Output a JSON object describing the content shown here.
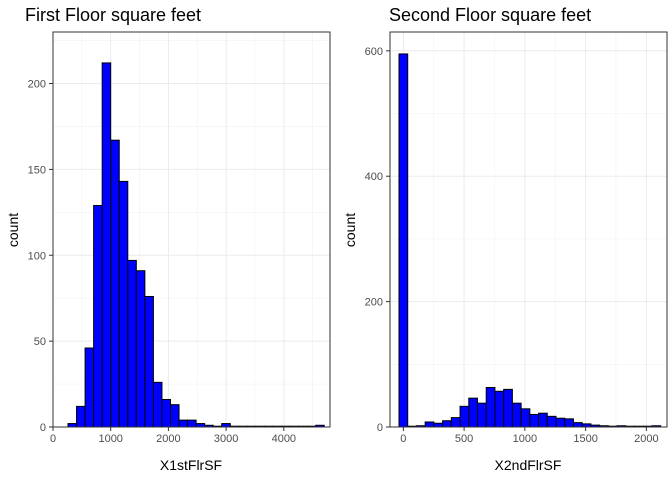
{
  "chart_data": [
    {
      "type": "bar",
      "title": "First Floor square feet",
      "xlabel": "X1stFlrSF",
      "ylabel": "count",
      "bar_color": "#0000ff",
      "outline_color": "#000000",
      "xlim": [
        0,
        4800
      ],
      "ylim": [
        0,
        230
      ],
      "x_ticks": [
        0,
        1000,
        2000,
        3000,
        4000
      ],
      "y_ticks": [
        0,
        50,
        100,
        150,
        200
      ],
      "grid": true,
      "bin_width": 148,
      "bin_start": 260,
      "values": [
        2,
        12,
        46,
        129,
        212,
        167,
        143,
        97,
        91,
        76,
        26,
        16,
        13,
        4,
        4,
        2,
        1,
        0,
        2,
        0,
        0,
        0,
        0,
        0,
        0,
        0,
        0,
        0,
        0,
        1
      ]
    },
    {
      "type": "bar",
      "title": "Second Floor square feet",
      "xlabel": "X2ndFlrSF",
      "ylabel": "count",
      "bar_color": "#0000ff",
      "outline_color": "#000000",
      "xlim": [
        -110,
        2170
      ],
      "ylim": [
        0,
        630
      ],
      "x_ticks": [
        0,
        500,
        1000,
        1500,
        2000
      ],
      "y_ticks": [
        0,
        200,
        400,
        600
      ],
      "grid": true,
      "bin_width": 71.8,
      "bin_start": -36,
      "values": [
        595,
        0,
        2,
        8,
        6,
        10,
        15,
        33,
        46,
        38,
        63,
        57,
        60,
        38,
        29,
        20,
        22,
        17,
        14,
        13,
        7,
        5,
        3,
        2,
        0,
        2,
        0,
        1,
        0,
        2
      ]
    }
  ]
}
